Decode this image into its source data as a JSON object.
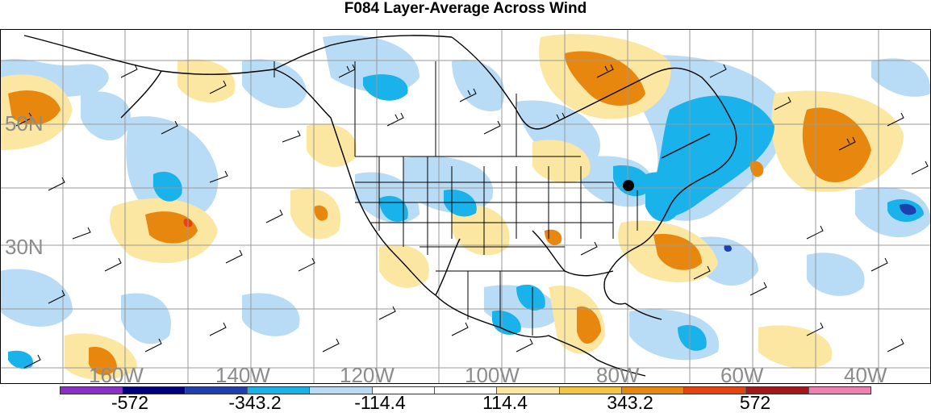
{
  "title": "F084 Layer-Average Across Wind",
  "grid_labels": {
    "lat": [
      "50N",
      "30N"
    ],
    "lon": [
      "160W",
      "140W",
      "120W",
      "100W",
      "80W",
      "60W",
      "40W"
    ]
  },
  "colorbar": {
    "labels": [
      "-572",
      "-343.2",
      "-114.4",
      "114.4",
      "343.2",
      "572"
    ],
    "colors": [
      "#8b2fc9",
      "#00007f",
      "#1f3fb0",
      "#1ab2ea",
      "#b8dcf6",
      "#ffffff",
      "#ffffff",
      "#fbe7a1",
      "#f4c542",
      "#e8870e",
      "#e8420e",
      "#a3171b",
      "#f27fb2"
    ]
  },
  "fill_colors": {
    "light_blue": "#b8dcf6",
    "blue": "#1ab2ea",
    "dark_blue": "#1f3fb0",
    "light_yellow": "#fbe7a1",
    "orange": "#e8870e",
    "red": "#e8420e"
  },
  "marker": "station-dot"
}
